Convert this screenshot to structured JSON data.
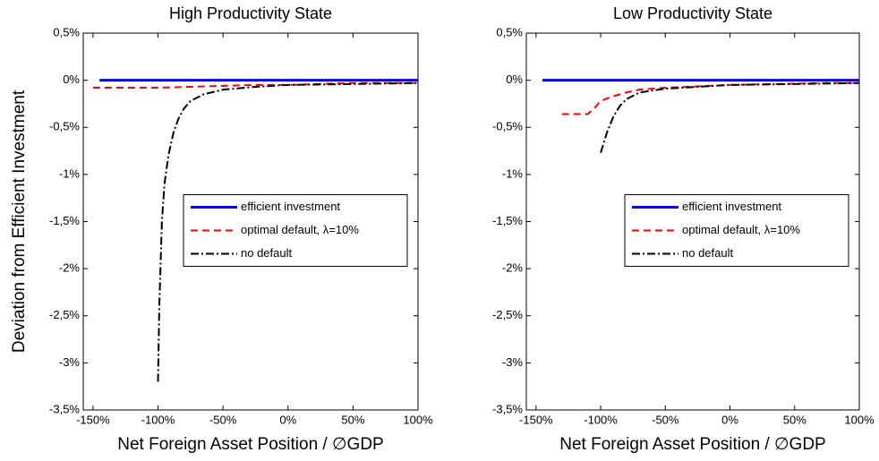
{
  "chart_data": [
    {
      "type": "line",
      "title": "High Productivity State",
      "xlabel": "Net Foreign Asset Position / ∅GDP",
      "ylabel": "Deviation from Efficient Investment",
      "xlim": [
        -157.5,
        100
      ],
      "ylim": [
        -3.5,
        0.5
      ],
      "xticks": [
        {
          "value": -150,
          "label": "-150%"
        },
        {
          "value": -100,
          "label": "-100%"
        },
        {
          "value": -50,
          "label": "-50%"
        },
        {
          "value": 0,
          "label": "0%"
        },
        {
          "value": 50,
          "label": "50%"
        },
        {
          "value": 100,
          "label": "100%"
        }
      ],
      "yticks": [
        {
          "value": 0.5,
          "label": "0,5%"
        },
        {
          "value": 0,
          "label": "0%"
        },
        {
          "value": -0.5,
          "label": "-0,5%"
        },
        {
          "value": -1,
          "label": "-1%"
        },
        {
          "value": -1.5,
          "label": "-1,5%"
        },
        {
          "value": -2,
          "label": "-2%"
        },
        {
          "value": -2.5,
          "label": "-2,5%"
        },
        {
          "value": -3,
          "label": "-3%"
        },
        {
          "value": -3.5,
          "label": "-3,5%"
        }
      ],
      "legend": "center right",
      "grid": false,
      "series": [
        {
          "name": "efficient investment",
          "color": "#0000ff",
          "style": "solid",
          "x": [
            -145,
            100
          ],
          "values": [
            0,
            0
          ]
        },
        {
          "name": "optimal default, λ=10%",
          "color": "#ff0000",
          "style": "dashed",
          "x": [
            -150,
            -100,
            -75,
            -50,
            -25,
            0,
            25,
            50,
            75,
            100
          ],
          "values": [
            -0.08,
            -0.08,
            -0.07,
            -0.06,
            -0.05,
            -0.05,
            -0.04,
            -0.03,
            -0.03,
            -0.03
          ]
        },
        {
          "name": "no default",
          "color": "#000000",
          "style": "dashdot",
          "x": [
            -100,
            -99,
            -97,
            -95,
            -92,
            -88,
            -84,
            -80,
            -75,
            -65,
            -50,
            -25,
            0,
            50,
            100
          ],
          "values": [
            -3.2,
            -2.4,
            -1.5,
            -1.1,
            -0.8,
            -0.55,
            -0.4,
            -0.3,
            -0.22,
            -0.15,
            -0.1,
            -0.07,
            -0.05,
            -0.04,
            -0.03
          ]
        }
      ]
    },
    {
      "type": "line",
      "title": "Low Productivity State",
      "xlabel": "Net Foreign Asset Position / ∅GDP",
      "xlim": [
        -157.5,
        100
      ],
      "ylim": [
        -3.5,
        0.5
      ],
      "xticks": [
        {
          "value": -150,
          "label": "-150%"
        },
        {
          "value": -100,
          "label": "-100%"
        },
        {
          "value": -50,
          "label": "-50%"
        },
        {
          "value": 0,
          "label": "0%"
        },
        {
          "value": 50,
          "label": "50%"
        },
        {
          "value": 100,
          "label": "100%"
        }
      ],
      "yticks": [
        {
          "value": 0.5,
          "label": "0,5%"
        },
        {
          "value": 0,
          "label": "0%"
        },
        {
          "value": -0.5,
          "label": "-0,5%"
        },
        {
          "value": -1,
          "label": "-1%"
        },
        {
          "value": -1.5,
          "label": "-1,5%"
        },
        {
          "value": -2,
          "label": "-2%"
        },
        {
          "value": -2.5,
          "label": "-2,5%"
        },
        {
          "value": -3,
          "label": "-3%"
        },
        {
          "value": -3.5,
          "label": "-3,5%"
        }
      ],
      "legend": "center right",
      "grid": false,
      "series": [
        {
          "name": "efficient investment",
          "color": "#0000ff",
          "style": "solid",
          "x": [
            -145,
            100
          ],
          "values": [
            0,
            0
          ]
        },
        {
          "name": "optimal default, λ=10%",
          "color": "#ff0000",
          "style": "dashed",
          "x": [
            -130,
            -110,
            -105,
            -100,
            -90,
            -80,
            -70,
            -50,
            0,
            75,
            100
          ],
          "values": [
            -0.36,
            -0.36,
            -0.3,
            -0.22,
            -0.17,
            -0.13,
            -0.1,
            -0.08,
            -0.05,
            -0.03,
            -0.03
          ]
        },
        {
          "name": "no default",
          "color": "#000000",
          "style": "dashdot",
          "x": [
            -100,
            -95,
            -90,
            -85,
            -80,
            -70,
            -50,
            0,
            100
          ],
          "values": [
            -0.77,
            -0.55,
            -0.38,
            -0.27,
            -0.2,
            -0.13,
            -0.09,
            -0.05,
            -0.03
          ]
        }
      ]
    }
  ]
}
